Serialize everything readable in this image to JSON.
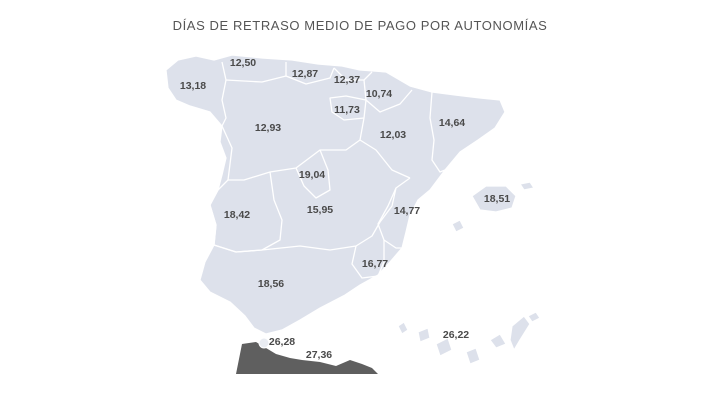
{
  "title": "DÍAS DE RETRASO MEDIO DE PAGO POR AUTONOMÍAS",
  "colors": {
    "land": "#dde1eb",
    "border": "#ffffff",
    "text": "#4a4a4a",
    "dark_area": "#5f5f5f"
  },
  "labels": {
    "galicia": "13,18",
    "asturias": "12,50",
    "cantabria": "12,87",
    "pais_vasco": "12,37",
    "navarra": "10,74",
    "la_rioja": "11,73",
    "castilla_leon": "12,93",
    "aragon": "12,03",
    "cataluna": "14,64",
    "madrid": "19,04",
    "castilla_la_mancha": "15,95",
    "extremadura": "18,42",
    "valencia": "14,77",
    "baleares": "18,51",
    "murcia": "16,77",
    "andalucia": "18,56",
    "ceuta": "26,28",
    "melilla": "27,36",
    "canarias": "26,22"
  }
}
